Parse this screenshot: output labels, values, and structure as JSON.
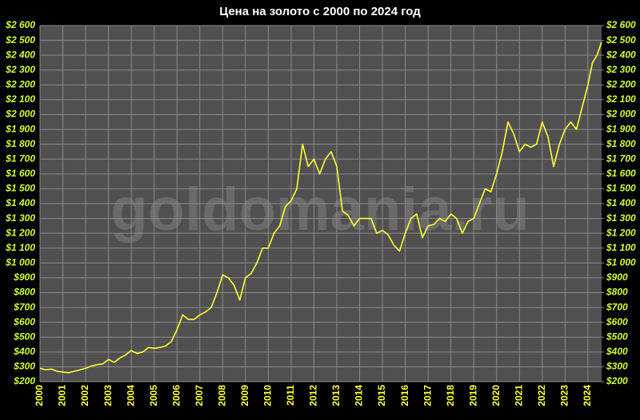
{
  "chart_data": {
    "type": "line",
    "title": "Цена на золото с 2000 по 2024  год",
    "watermark": "goldomania.ru",
    "color": "#ffff33",
    "grid": true,
    "x": [
      2000,
      2000.25,
      2000.5,
      2000.75,
      2001,
      2001.25,
      2001.5,
      2001.75,
      2002,
      2002.25,
      2002.5,
      2002.75,
      2003,
      2003.25,
      2003.5,
      2003.75,
      2004,
      2004.25,
      2004.5,
      2004.75,
      2005,
      2005.25,
      2005.5,
      2005.75,
      2006,
      2006.25,
      2006.5,
      2006.75,
      2007,
      2007.25,
      2007.5,
      2007.75,
      2008,
      2008.25,
      2008.5,
      2008.75,
      2009,
      2009.25,
      2009.5,
      2009.75,
      2010,
      2010.25,
      2010.5,
      2010.75,
      2011,
      2011.25,
      2011.5,
      2011.75,
      2012,
      2012.25,
      2012.5,
      2012.75,
      2013,
      2013.25,
      2013.5,
      2013.75,
      2014,
      2014.25,
      2014.5,
      2014.75,
      2015,
      2015.25,
      2015.5,
      2015.75,
      2016,
      2016.25,
      2016.5,
      2016.75,
      2017,
      2017.25,
      2017.5,
      2017.75,
      2018,
      2018.25,
      2018.5,
      2018.75,
      2019,
      2019.25,
      2019.5,
      2019.75,
      2020,
      2020.25,
      2020.5,
      2020.75,
      2021,
      2021.25,
      2021.5,
      2021.75,
      2022,
      2022.25,
      2022.5,
      2022.75,
      2023,
      2023.25,
      2023.5,
      2023.75,
      2024,
      2024.2,
      2024.4,
      2024.6
    ],
    "values": [
      290,
      280,
      285,
      270,
      265,
      260,
      270,
      280,
      290,
      305,
      315,
      320,
      350,
      330,
      360,
      380,
      410,
      390,
      400,
      430,
      425,
      430,
      440,
      470,
      550,
      650,
      620,
      620,
      650,
      670,
      700,
      800,
      920,
      900,
      850,
      750,
      900,
      930,
      1000,
      1100,
      1100,
      1200,
      1250,
      1380,
      1420,
      1500,
      1800,
      1650,
      1700,
      1600,
      1700,
      1750,
      1650,
      1350,
      1320,
      1250,
      1300,
      1300,
      1300,
      1200,
      1220,
      1190,
      1120,
      1080,
      1200,
      1300,
      1330,
      1170,
      1250,
      1260,
      1300,
      1280,
      1330,
      1300,
      1200,
      1280,
      1300,
      1400,
      1500,
      1480,
      1600,
      1750,
      1950,
      1870,
      1750,
      1800,
      1780,
      1800,
      1950,
      1850,
      1650,
      1800,
      1900,
      1950,
      1900,
      2050,
      2200,
      2350,
      2400,
      2490
    ],
    "xlim": [
      2000,
      2024.6
    ],
    "xticks": [
      2000,
      2001,
      2002,
      2003,
      2004,
      2005,
      2006,
      2007,
      2008,
      2009,
      2010,
      2011,
      2012,
      2013,
      2014,
      2015,
      2016,
      2017,
      2018,
      2019,
      2020,
      2021,
      2022,
      2023,
      2024
    ],
    "ylim": [
      200,
      2600
    ],
    "yticks": [
      {
        "value": 200,
        "label": "$200"
      },
      {
        "value": 300,
        "label": "$300"
      },
      {
        "value": 400,
        "label": "$400"
      },
      {
        "value": 500,
        "label": "$500"
      },
      {
        "value": 600,
        "label": "$600"
      },
      {
        "value": 700,
        "label": "$700"
      },
      {
        "value": 800,
        "label": "$800"
      },
      {
        "value": 900,
        "label": "$900"
      },
      {
        "value": 1000,
        "label": "$1 000"
      },
      {
        "value": 1100,
        "label": "$1 100"
      },
      {
        "value": 1200,
        "label": "$1 200"
      },
      {
        "value": 1300,
        "label": "$1 300"
      },
      {
        "value": 1400,
        "label": "$1 400"
      },
      {
        "value": 1500,
        "label": "$1 500"
      },
      {
        "value": 1600,
        "label": "$1 600"
      },
      {
        "value": 1700,
        "label": "$1 700"
      },
      {
        "value": 1800,
        "label": "$1 800"
      },
      {
        "value": 1900,
        "label": "$1 900"
      },
      {
        "value": 2000,
        "label": "$2 000"
      },
      {
        "value": 2100,
        "label": "$2 100"
      },
      {
        "value": 2200,
        "label": "$2 200"
      },
      {
        "value": 2300,
        "label": "$2 300"
      },
      {
        "value": 2400,
        "label": "$2 400"
      },
      {
        "value": 2500,
        "label": "$2 500"
      },
      {
        "value": 2600,
        "label": "$2 600"
      }
    ],
    "y2lim": [
      200,
      2600
    ],
    "y2ticks": [
      {
        "value": 200,
        "label": "$200"
      },
      {
        "value": 300,
        "label": "$300"
      },
      {
        "value": 400,
        "label": "$400"
      },
      {
        "value": 500,
        "label": "$500"
      },
      {
        "value": 600,
        "label": "$600"
      },
      {
        "value": 700,
        "label": "$700"
      },
      {
        "value": 800,
        "label": "$800"
      },
      {
        "value": 900,
        "label": "$900"
      },
      {
        "value": 1000,
        "label": "$1 000"
      },
      {
        "value": 1100,
        "label": "$1 100"
      },
      {
        "value": 1200,
        "label": "$1 200"
      },
      {
        "value": 1300,
        "label": "$1 300"
      },
      {
        "value": 1400,
        "label": "$1 400"
      },
      {
        "value": 1500,
        "label": "$1 500"
      },
      {
        "value": 1600,
        "label": "$1 600"
      },
      {
        "value": 1700,
        "label": "$1 700"
      },
      {
        "value": 1800,
        "label": "$1 800"
      },
      {
        "value": 1900,
        "label": "$1 900"
      },
      {
        "value": 2000,
        "label": "$2 000"
      },
      {
        "value": 2100,
        "label": "$2 100"
      },
      {
        "value": 2200,
        "label": "$2 200"
      },
      {
        "value": 2300,
        "label": "$2 300"
      },
      {
        "value": 2400,
        "label": "$2 400"
      },
      {
        "value": 2500,
        "label": "$2 500"
      },
      {
        "value": 2600,
        "label": "$2 600"
      }
    ]
  }
}
